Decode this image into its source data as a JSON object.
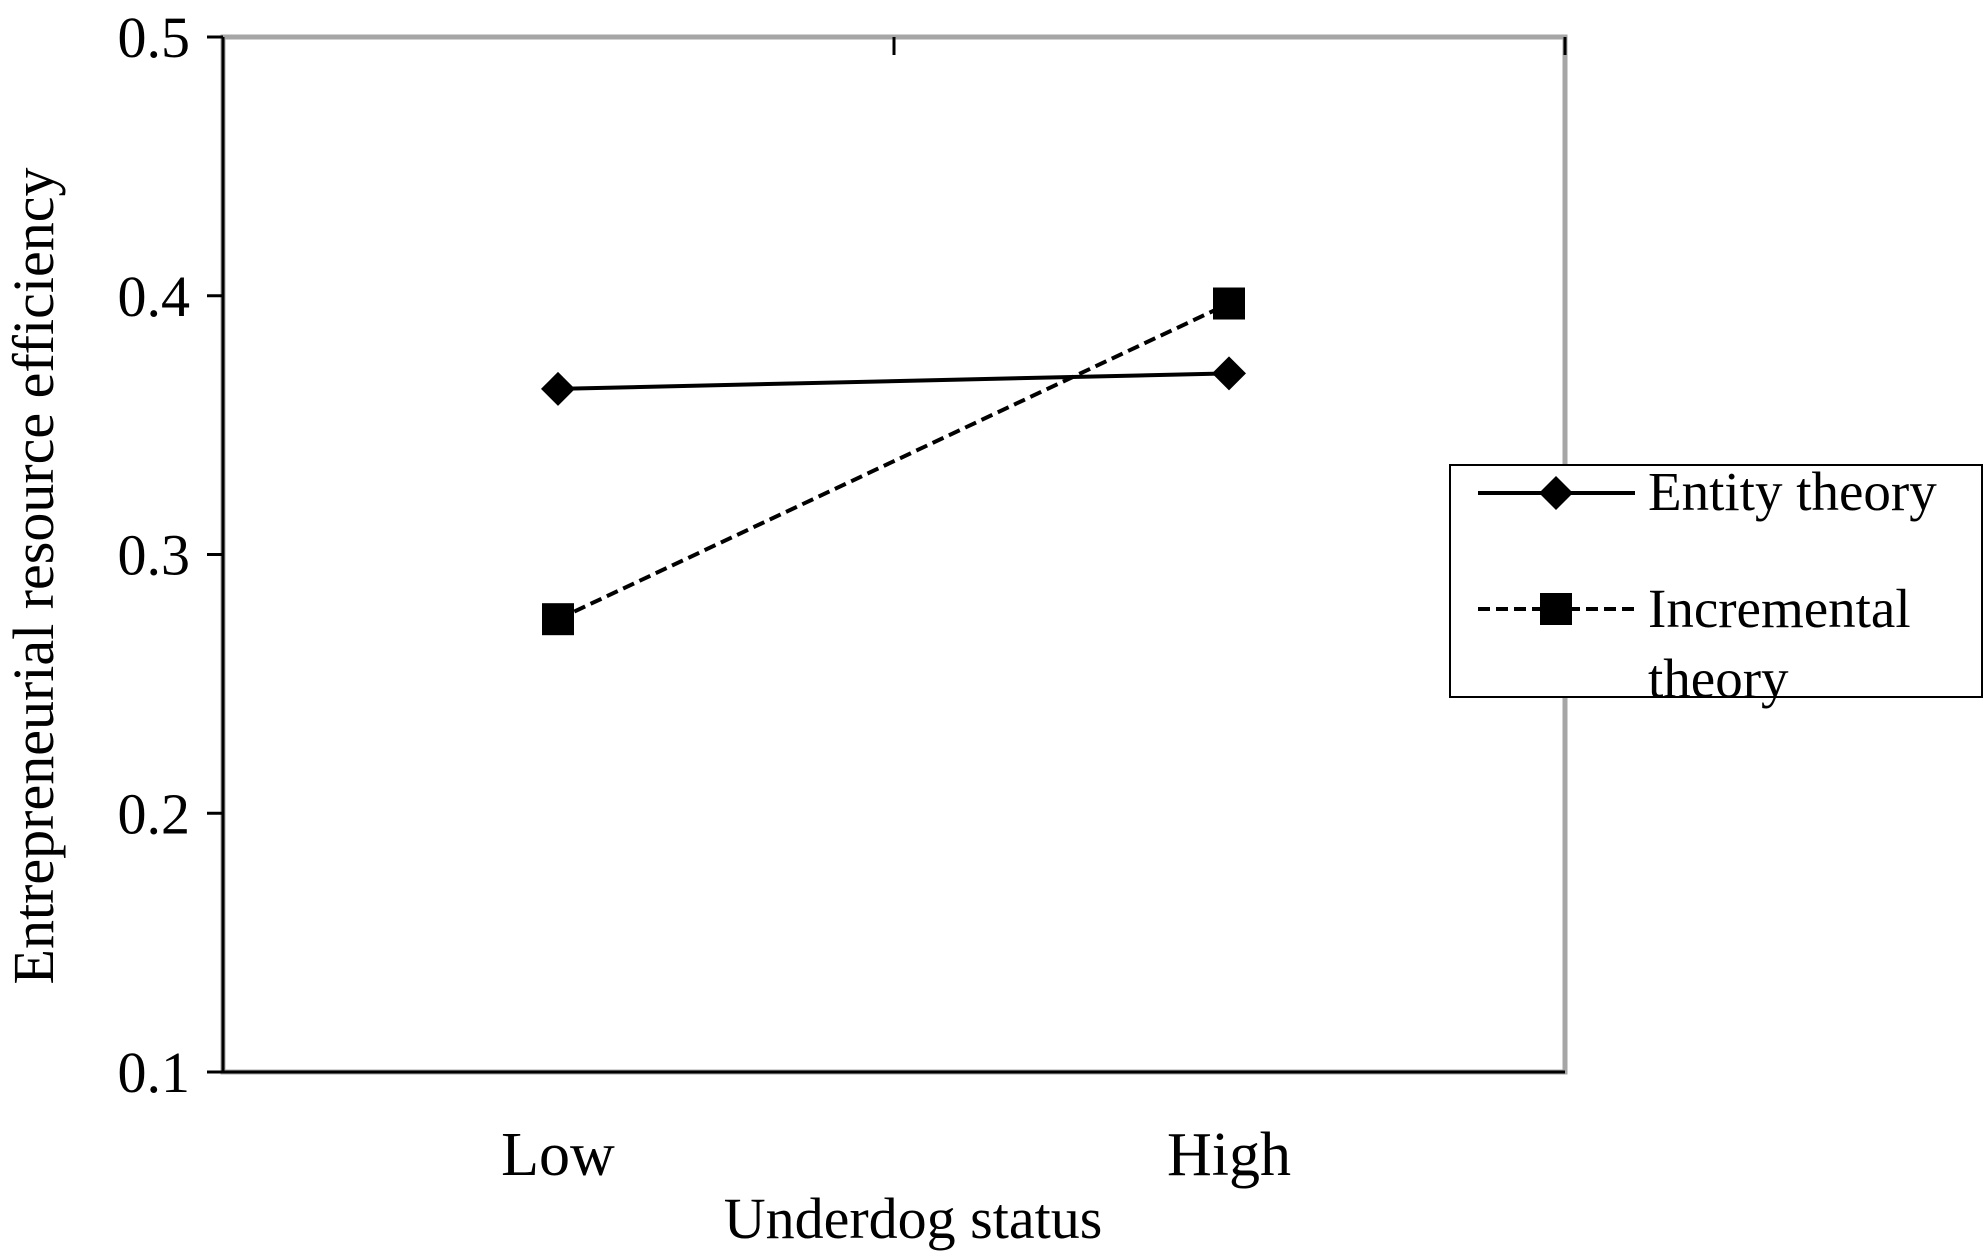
{
  "chart_data": {
    "type": "line",
    "title": "",
    "xlabel": "Underdog status",
    "ylabel": "Entrepreneurial resource efficiency",
    "categories": [
      "Low",
      "High"
    ],
    "ylim": [
      0.1,
      0.5
    ],
    "yticks": [
      "0.1",
      "0.2",
      "0.3",
      "0.4",
      "0.5"
    ],
    "grid": false,
    "legend_position": "right",
    "series": [
      {
        "name": "Entity theory",
        "values": [
          0.364,
          0.37
        ],
        "marker": "diamond",
        "line_style": "solid",
        "color": "#000000"
      },
      {
        "name": "Incremental theory",
        "name_lines": [
          "Incremental",
          "theory"
        ],
        "values": [
          0.275,
          0.397
        ],
        "marker": "square",
        "line_style": "dashed",
        "color": "#000000"
      }
    ],
    "colors": {
      "plot_border": "#a6a6a6",
      "axis": "#000000",
      "legend_border": "#000000"
    }
  }
}
